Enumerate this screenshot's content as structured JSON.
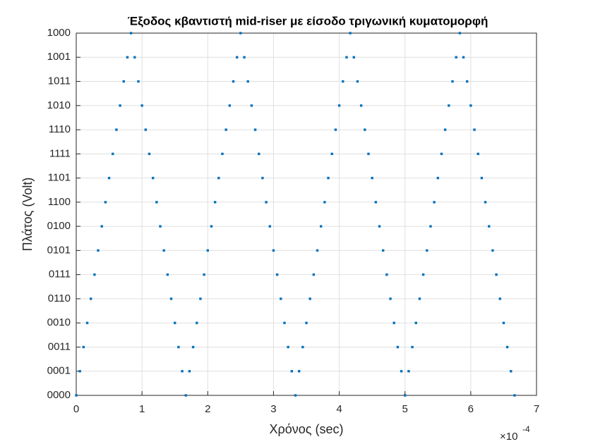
{
  "chart_data": {
    "type": "scatter",
    "title": "Έξοδος κβαντιστή mid-riser με είσοδο τριγωνική κυματομορφή",
    "x_label": "Χρόνος (sec)",
    "y_label": "Πλάτος (Volt)",
    "x_multiplier": "×10",
    "x_exponent": "-4",
    "xlim": [
      0,
      7
    ],
    "xticks": [
      0,
      1,
      2,
      3,
      4,
      5,
      6,
      7
    ],
    "ylim": [
      0,
      15
    ],
    "yticks": [
      {
        "value": 0,
        "label": "0000"
      },
      {
        "value": 1,
        "label": "0001"
      },
      {
        "value": 2,
        "label": "0011"
      },
      {
        "value": 3,
        "label": "0010"
      },
      {
        "value": 4,
        "label": "0110"
      },
      {
        "value": 5,
        "label": "0111"
      },
      {
        "value": 6,
        "label": "0101"
      },
      {
        "value": 7,
        "label": "0100"
      },
      {
        "value": 8,
        "label": "1100"
      },
      {
        "value": 9,
        "label": "1101"
      },
      {
        "value": 10,
        "label": "1111"
      },
      {
        "value": 11,
        "label": "1110"
      },
      {
        "value": 12,
        "label": "1010"
      },
      {
        "value": 13,
        "label": "1011"
      },
      {
        "value": 14,
        "label": "1001"
      },
      {
        "value": 15,
        "label": "1000"
      }
    ],
    "grid": true,
    "color": "#0072bd",
    "x": [
      0,
      0.0556,
      0.1111,
      0.1667,
      0.2222,
      0.2778,
      0.3333,
      0.3889,
      0.4444,
      0.5,
      0.5556,
      0.6111,
      0.6667,
      0.7222,
      0.7778,
      0.8333,
      0.8889,
      0.9444,
      1,
      1.0556,
      1.1111,
      1.1667,
      1.2222,
      1.2778,
      1.3333,
      1.3889,
      1.4444,
      1.5,
      1.5556,
      1.6111,
      1.6667,
      1.7222,
      1.7778,
      1.8333,
      1.8889,
      1.9444,
      2,
      2.0556,
      2.1111,
      2.1667,
      2.2222,
      2.2778,
      2.3333,
      2.3889,
      2.4444,
      2.5,
      2.5556,
      2.6111,
      2.6667,
      2.7222,
      2.7778,
      2.8333,
      2.8889,
      2.9444,
      3,
      3.0556,
      3.1111,
      3.1667,
      3.2222,
      3.2778,
      3.3333,
      3.3889,
      3.4444,
      3.5,
      3.5556,
      3.6111,
      3.6667,
      3.7222,
      3.7778,
      3.8333,
      3.8889,
      3.9444,
      4,
      4.0556,
      4.1111,
      4.1667,
      4.2222,
      4.2778,
      4.3333,
      4.3889,
      4.4444,
      4.5,
      4.5556,
      4.6111,
      4.6667,
      4.7222,
      4.7778,
      4.8333,
      4.8889,
      4.9444,
      5,
      5.0556,
      5.1111,
      5.1667,
      5.2222,
      5.2778,
      5.3333,
      5.3889,
      5.4444,
      5.5,
      5.5556,
      5.6111,
      5.6667,
      5.7222,
      5.7778,
      5.8333,
      5.8889,
      5.9444,
      6,
      6.0556,
      6.1111,
      6.1667,
      6.2222,
      6.2778,
      6.3333,
      6.3889,
      6.4444,
      6.5,
      6.5556,
      6.6111,
      6.6667
    ],
    "values": [
      0,
      1,
      2,
      3,
      4,
      5,
      6,
      7,
      8,
      9,
      10,
      11,
      12,
      13,
      14,
      15,
      14,
      13,
      12,
      11,
      10,
      9,
      8,
      7,
      6,
      5,
      4,
      3,
      2,
      1,
      0,
      1,
      2,
      3,
      4,
      5,
      6,
      7,
      8,
      9,
      10,
      11,
      12,
      13,
      14,
      15,
      14,
      13,
      12,
      11,
      10,
      9,
      8,
      7,
      6,
      5,
      4,
      3,
      2,
      1,
      0,
      1,
      2,
      3,
      4,
      5,
      6,
      7,
      8,
      9,
      10,
      11,
      12,
      13,
      14,
      15,
      14,
      13,
      12,
      11,
      10,
      9,
      8,
      7,
      6,
      5,
      4,
      3,
      2,
      1,
      0,
      1,
      2,
      3,
      4,
      5,
      6,
      7,
      8,
      9,
      10,
      11,
      12,
      13,
      14,
      15,
      14,
      13,
      12,
      11,
      10,
      9,
      8,
      7,
      6,
      5,
      4,
      3,
      2,
      1,
      0
    ]
  }
}
